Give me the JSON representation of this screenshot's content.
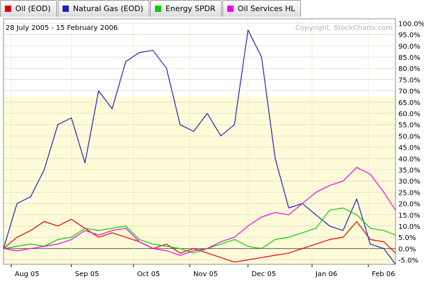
{
  "legend_tabs": [
    {
      "label": "Oil (EOD)",
      "color": "#e00000"
    },
    {
      "label": "Natural Gas (EOD)",
      "color": "#2020c0"
    },
    {
      "label": "Energy SPDR",
      "color": "#00cc00"
    },
    {
      "label": "Oil Services HL",
      "color": "#ee00ee"
    }
  ],
  "chart_data": {
    "type": "line",
    "title": "",
    "date_range": "28 July 2005 - 15 February 2006",
    "copyright": "Copyright, StockCharts.com",
    "ylim": [
      -7,
      102
    ],
    "yticks": [
      "100.0%",
      "95.0%",
      "90.0%",
      "85.0%",
      "80.0%",
      "75.0%",
      "70.0%",
      "65.0%",
      "60.0%",
      "55.0%",
      "50.0%",
      "45.0%",
      "40.0%",
      "35.0%",
      "30.0%",
      "25.0%",
      "20.0%",
      "15.0%",
      "10.0%",
      "5.0%",
      "0.0%",
      "-5.0%"
    ],
    "ytick_values": [
      100,
      95,
      90,
      85,
      80,
      75,
      70,
      65,
      60,
      55,
      50,
      45,
      40,
      35,
      30,
      25,
      20,
      15,
      10,
      5,
      0,
      -5
    ],
    "xticks": [
      {
        "label": "Aug 05",
        "date": "2005-08-01"
      },
      {
        "label": "Sep 05",
        "date": "2005-09-01"
      },
      {
        "label": "Oct 05",
        "date": "2005-10-03"
      },
      {
        "label": "Nov 05",
        "date": "2005-11-01"
      },
      {
        "label": "Dec 05",
        "date": "2005-12-01"
      },
      {
        "label": "Jan 06",
        "date": "2006-01-03"
      },
      {
        "label": "Feb 06",
        "date": "2006-02-01"
      }
    ],
    "x": [
      "2005-07-28",
      "2005-08-04",
      "2005-08-11",
      "2005-08-18",
      "2005-08-25",
      "2005-09-01",
      "2005-09-08",
      "2005-09-15",
      "2005-09-22",
      "2005-09-29",
      "2005-10-06",
      "2005-10-13",
      "2005-10-20",
      "2005-10-27",
      "2005-11-03",
      "2005-11-10",
      "2005-11-17",
      "2005-11-24",
      "2005-12-01",
      "2005-12-08",
      "2005-12-15",
      "2005-12-22",
      "2005-12-29",
      "2006-01-05",
      "2006-01-12",
      "2006-01-19",
      "2006-01-26",
      "2006-02-02",
      "2006-02-09",
      "2006-02-15"
    ],
    "series": [
      {
        "name": "Oil (EOD)",
        "color": "#e00000",
        "values": [
          0,
          5,
          8,
          12,
          10,
          13,
          9,
          5,
          7,
          5,
          3,
          0,
          2,
          -2,
          0,
          -2,
          -4,
          -6,
          -5,
          -4,
          -3,
          -2,
          0,
          2,
          4,
          5,
          12,
          4,
          3,
          -2
        ]
      },
      {
        "name": "Natural Gas (EOD)",
        "color": "#2020c0",
        "values": [
          0,
          20,
          23,
          35,
          55,
          58,
          38,
          70,
          62,
          83,
          87,
          88,
          80,
          55,
          52,
          60,
          50,
          55,
          97,
          85,
          40,
          18,
          20,
          15,
          10,
          8,
          22,
          2,
          0,
          -7
        ]
      },
      {
        "name": "Energy SPDR",
        "color": "#00cc00",
        "values": [
          0,
          1,
          2,
          1,
          4,
          5,
          9,
          8,
          9,
          10,
          4,
          2,
          1,
          0,
          -2,
          0,
          2,
          4,
          1,
          0,
          4,
          5,
          7,
          9,
          17,
          18,
          15,
          9,
          8,
          6
        ]
      },
      {
        "name": "Oil Services HL",
        "color": "#ee00ee",
        "values": [
          0,
          -1,
          0,
          1,
          2,
          4,
          8,
          6,
          8,
          9,
          3,
          0,
          -1,
          -3,
          -1,
          0,
          3,
          5,
          10,
          14,
          16,
          15,
          20,
          25,
          28,
          30,
          36,
          33,
          25,
          17
        ]
      }
    ],
    "grid": "horizontal",
    "legend_position": "top-left"
  }
}
